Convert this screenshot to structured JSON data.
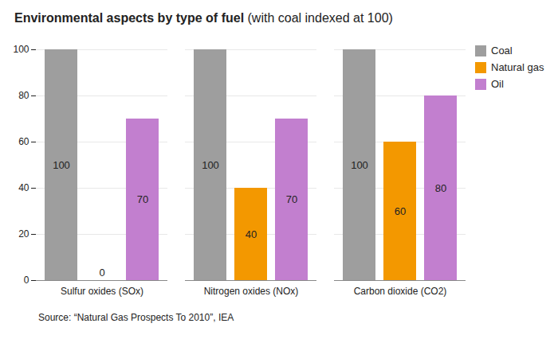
{
  "chart_data": {
    "type": "bar",
    "title": "Environmental aspects by type of fuel",
    "subtitle": "(with coal indexed at 100)",
    "caption": "Source: “Natural Gas Prospects To 2010”, IEA",
    "categories": [
      "Sulfur oxides (SOx)",
      "Nitrogen oxides (NOx)",
      "Carbon dioxide (CO2)"
    ],
    "series": [
      {
        "name": "Coal",
        "color": "#9e9e9e",
        "values": [
          100,
          100,
          100
        ]
      },
      {
        "name": "Natural gas",
        "color": "#f39800",
        "values": [
          0,
          40,
          60
        ]
      },
      {
        "name": "Oil",
        "color": "#c27fcf",
        "values": [
          70,
          70,
          80
        ]
      }
    ],
    "ylim": [
      0,
      100
    ],
    "yticks": [
      0,
      20,
      40,
      60,
      80,
      100
    ],
    "grid": true,
    "data_labels": true,
    "legend": "top-right"
  }
}
